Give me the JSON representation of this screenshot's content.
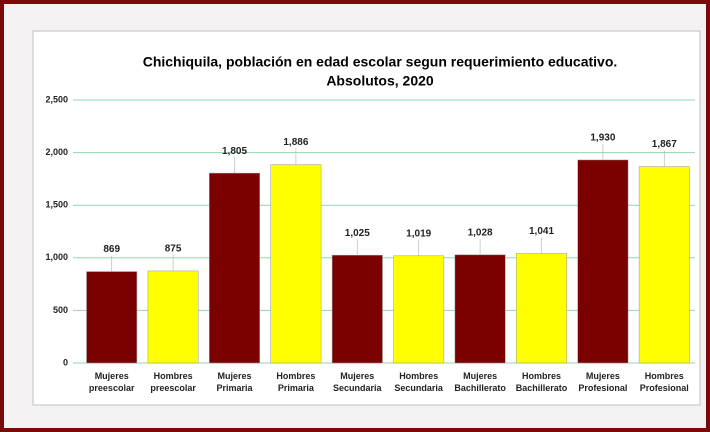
{
  "chart_data": {
    "type": "bar",
    "title": "Chichiquila, población en edad escolar segun requerimiento educativo.",
    "subtitle": "Absolutos, 2020",
    "categories": [
      [
        "Mujeres",
        "preescolar"
      ],
      [
        "Hombres",
        "preescolar"
      ],
      [
        "Mujeres",
        "Primaria"
      ],
      [
        "Hombres",
        "Primaria"
      ],
      [
        "Mujeres",
        "Secundaria"
      ],
      [
        "Hombres",
        "Secundaria"
      ],
      [
        "Mujeres",
        "Bachillerato"
      ],
      [
        "Hombres",
        "Bachillerato"
      ],
      [
        "Mujeres",
        "Profesional"
      ],
      [
        "Hombres",
        "Profesional"
      ]
    ],
    "values": [
      869,
      875,
      1805,
      1886,
      1025,
      1019,
      1028,
      1041,
      1930,
      1867
    ],
    "value_labels": [
      "869",
      "875",
      "1,805",
      "1,886",
      "1,025",
      "1,019",
      "1,028",
      "1,041",
      "1,930",
      "1,867"
    ],
    "colors": [
      "#7b0000",
      "#ffff00",
      "#7b0000",
      "#ffff00",
      "#7b0000",
      "#ffff00",
      "#7b0000",
      "#ffff00",
      "#7b0000",
      "#ffff00"
    ],
    "ylim": [
      0,
      2500
    ],
    "yticks": [
      0,
      500,
      {
        "value": 1000,
        "label": "1,000"
      },
      {
        "value": 1500,
        "label": "1,500"
      },
      {
        "value": 2000,
        "label": "2,000"
      },
      {
        "value": 2500,
        "label": "2,500"
      }
    ],
    "grid": true
  }
}
